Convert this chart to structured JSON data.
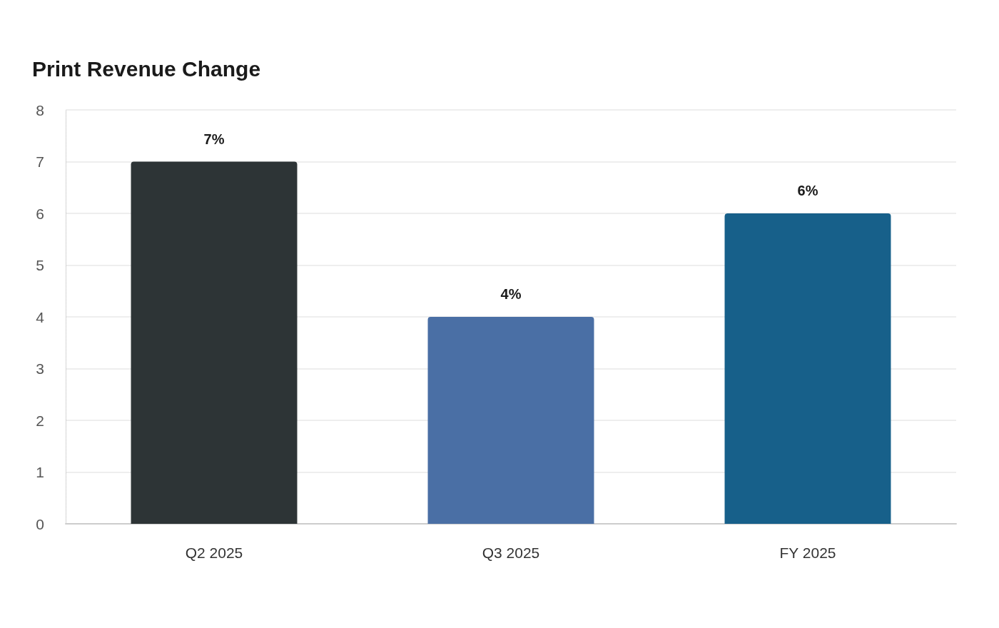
{
  "chart_data": {
    "type": "bar",
    "title": "Print Revenue Change",
    "categories": [
      "Q2 2025",
      "Q3 2025",
      "FY 2025"
    ],
    "values": [
      7,
      4,
      6
    ],
    "colors": [
      "#2d3436",
      "#4a6fa5",
      "#17608a"
    ],
    "value_labels": [
      "7%",
      "4%",
      "6%"
    ],
    "ylim": [
      0,
      8
    ],
    "yticks": [
      0,
      1,
      2,
      3,
      4,
      5,
      6,
      7,
      8
    ],
    "grid": "y"
  }
}
